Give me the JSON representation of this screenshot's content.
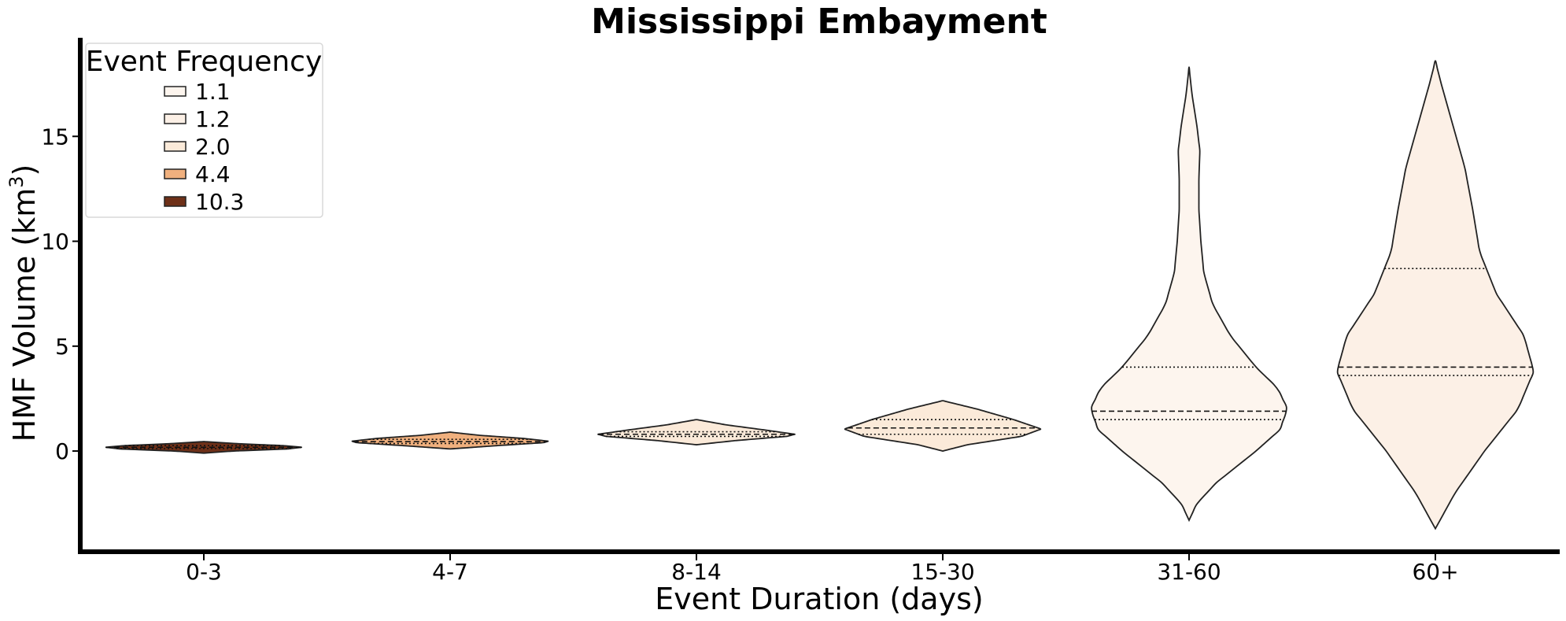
{
  "chart_data": {
    "type": "violin",
    "title": "Mississippi Embayment",
    "xlabel": "Event Duration (days)",
    "ylabel": "HMF Volume (km",
    "ylabel_superscript": "3",
    "ylabel_suffix": ")",
    "ylim": [
      -4.8,
      19.7
    ],
    "yticks": [
      0,
      5,
      10,
      15
    ],
    "categories": [
      "0-3",
      "4-7",
      "8-14",
      "15-30",
      "31-60",
      "60+"
    ],
    "legend": {
      "title": "Event Frequency",
      "placement": "top-left",
      "entries": [
        {
          "label": "1.1",
          "color": "#fdf5ee"
        },
        {
          "label": "1.2",
          "color": "#fcf0e6"
        },
        {
          "label": "2.0",
          "color": "#fbead9"
        },
        {
          "label": "4.4",
          "color": "#f0b07e"
        },
        {
          "label": "10.3",
          "color": "#6e3018"
        }
      ]
    },
    "violins": [
      {
        "category": "0-3",
        "frequency": 10.3,
        "color": "#6e3018",
        "min": -0.1,
        "max": 0.45,
        "median": 0.18,
        "q1": 0.12,
        "q3": 0.26,
        "profile": [
          [
            -0.1,
            0.0
          ],
          [
            0.0,
            0.3
          ],
          [
            0.1,
            0.85
          ],
          [
            0.18,
            1.0
          ],
          [
            0.26,
            0.8
          ],
          [
            0.35,
            0.35
          ],
          [
            0.45,
            0.0
          ]
        ]
      },
      {
        "category": "4-7",
        "frequency": 4.4,
        "color": "#f0b07e",
        "min": 0.1,
        "max": 0.9,
        "median": 0.45,
        "q1": 0.36,
        "q3": 0.56,
        "profile": [
          [
            0.1,
            0.0
          ],
          [
            0.25,
            0.45
          ],
          [
            0.4,
            0.95
          ],
          [
            0.47,
            1.0
          ],
          [
            0.6,
            0.75
          ],
          [
            0.75,
            0.3
          ],
          [
            0.9,
            0.0
          ]
        ]
      },
      {
        "category": "8-14",
        "frequency": 2.0,
        "color": "#fbead9",
        "min": 0.3,
        "max": 1.5,
        "median": 0.8,
        "q1": 0.7,
        "q3": 0.92,
        "profile": [
          [
            0.3,
            0.0
          ],
          [
            0.5,
            0.4
          ],
          [
            0.7,
            0.92
          ],
          [
            0.8,
            1.0
          ],
          [
            1.0,
            0.7
          ],
          [
            1.25,
            0.3
          ],
          [
            1.5,
            0.0
          ]
        ]
      },
      {
        "category": "15-30",
        "frequency": 2.0,
        "color": "#fbead9",
        "min": 0.0,
        "max": 2.4,
        "median": 1.1,
        "q1": 0.8,
        "q3": 1.5,
        "profile": [
          [
            0.0,
            0.0
          ],
          [
            0.3,
            0.25
          ],
          [
            0.7,
            0.8
          ],
          [
            1.05,
            1.0
          ],
          [
            1.5,
            0.72
          ],
          [
            2.0,
            0.35
          ],
          [
            2.4,
            0.0
          ]
        ]
      },
      {
        "category": "31-60",
        "frequency": 1.1,
        "color": "#fdf5ee",
        "min": -3.3,
        "max": 18.3,
        "median": 1.9,
        "q1": 1.5,
        "q3": 4.0,
        "profile": [
          [
            -3.3,
            0.0
          ],
          [
            -2.5,
            0.08
          ],
          [
            -1.5,
            0.28
          ],
          [
            0.0,
            0.68
          ],
          [
            1.0,
            0.92
          ],
          [
            2.0,
            1.0
          ],
          [
            3.0,
            0.9
          ],
          [
            4.0,
            0.68
          ],
          [
            5.5,
            0.42
          ],
          [
            7.0,
            0.24
          ],
          [
            8.5,
            0.15
          ],
          [
            10.0,
            0.12
          ],
          [
            11.5,
            0.1
          ],
          [
            13.0,
            0.1
          ],
          [
            14.3,
            0.11
          ],
          [
            15.5,
            0.08
          ],
          [
            17.0,
            0.03
          ],
          [
            18.3,
            0.0
          ]
        ]
      },
      {
        "category": "60+",
        "frequency": 1.2,
        "color": "#fcf0e6",
        "min": -3.7,
        "max": 18.6,
        "median": 4.0,
        "q1": 3.6,
        "q3": 8.7,
        "profile": [
          [
            -3.7,
            0.0
          ],
          [
            -2.0,
            0.2
          ],
          [
            0.0,
            0.5
          ],
          [
            2.0,
            0.84
          ],
          [
            3.8,
            1.0
          ],
          [
            5.5,
            0.9
          ],
          [
            7.5,
            0.62
          ],
          [
            9.5,
            0.45
          ],
          [
            11.5,
            0.38
          ],
          [
            13.5,
            0.3
          ],
          [
            15.5,
            0.18
          ],
          [
            17.5,
            0.06
          ],
          [
            18.6,
            0.0
          ]
        ]
      }
    ]
  }
}
